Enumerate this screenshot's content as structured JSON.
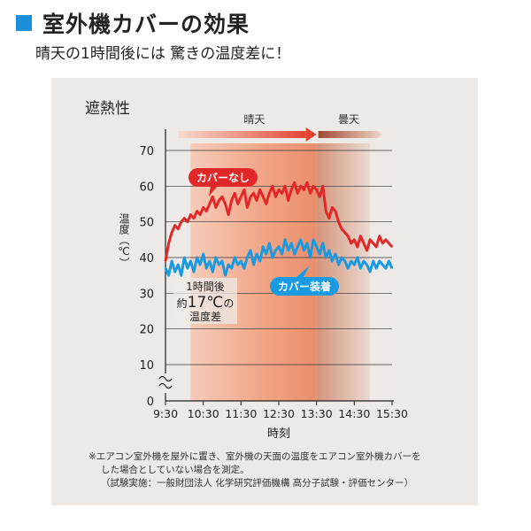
{
  "header": {
    "title": "室外機カバーの効果",
    "subtitle": "晴天の1時間後には 驚きの温度差に！"
  },
  "panel": {
    "heading": "遮熱性",
    "notes": [
      "※エアコン室外機を屋外に置き、室外機の天面の温度をエアコン室外機カバーを",
      "した場合としていない場合を測定。",
      "（試験実施：一般財団法人 化学研究評価機構 高分子試験・評価センター）"
    ]
  },
  "chart_data": {
    "type": "line",
    "title": "遮熱性",
    "xlabel": "時刻",
    "ylabel": "温度（℃）",
    "x_ticks": [
      "9:30",
      "10:30",
      "11:30",
      "12:30",
      "13:30",
      "14:30",
      "15:30"
    ],
    "y_ticks": [
      0,
      10,
      20,
      30,
      40,
      50,
      60,
      70
    ],
    "ylim": [
      0,
      70
    ],
    "y_axis_break": "0-10",
    "grid": "horizontal",
    "periods": [
      {
        "label": "晴天",
        "from": "9:30",
        "to": "13:30"
      },
      {
        "label": "曇天",
        "from": "13:30",
        "to": "15:30"
      }
    ],
    "annotation": {
      "line1": "1時間後",
      "prefix": "約",
      "value": "17℃",
      "suffix": "の",
      "line3": "温度差"
    },
    "colors": {
      "no_cover": "#e02828",
      "with_cover": "#1a9ae0",
      "accent": "#1a8ed8"
    },
    "series": [
      {
        "name": "カバーなし",
        "x": [
          "9:30",
          "9:35",
          "9:40",
          "9:45",
          "9:50",
          "9:55",
          "10:00",
          "10:05",
          "10:10",
          "10:15",
          "10:20",
          "10:25",
          "10:30",
          "10:35",
          "10:40",
          "10:45",
          "10:50",
          "10:55",
          "11:00",
          "11:05",
          "11:10",
          "11:15",
          "11:20",
          "11:25",
          "11:30",
          "11:35",
          "11:40",
          "11:45",
          "11:50",
          "11:55",
          "12:00",
          "12:05",
          "12:10",
          "12:15",
          "12:20",
          "12:25",
          "12:30",
          "12:35",
          "12:40",
          "12:45",
          "12:50",
          "12:55",
          "13:00",
          "13:05",
          "13:10",
          "13:15",
          "13:20",
          "13:25",
          "13:30",
          "13:35",
          "13:40",
          "13:45",
          "13:50",
          "13:55",
          "14:00",
          "14:05",
          "14:10",
          "14:15",
          "14:20",
          "14:25",
          "14:30",
          "14:35",
          "14:40",
          "14:45",
          "14:50",
          "14:55",
          "15:00",
          "15:05",
          "15:10",
          "15:15",
          "15:20",
          "15:25",
          "15:30"
        ],
        "values": [
          39,
          44,
          47,
          49,
          48,
          50,
          51,
          50,
          52,
          51,
          53,
          52,
          54,
          53,
          55,
          57,
          54,
          56,
          57,
          55,
          52,
          56,
          58,
          55,
          57,
          59,
          54,
          57,
          58,
          56,
          59,
          57,
          55,
          58,
          60,
          57,
          59,
          58,
          60,
          56,
          59,
          61,
          58,
          60,
          59,
          61,
          58,
          60,
          59,
          57,
          60,
          53,
          51,
          54,
          53,
          50,
          48,
          47,
          46,
          44,
          45,
          43,
          46,
          44,
          42,
          45,
          44,
          43,
          46,
          44,
          45,
          44,
          43
        ]
      },
      {
        "name": "カバー装着",
        "x": [
          "9:30",
          "9:35",
          "9:40",
          "9:45",
          "9:50",
          "9:55",
          "10:00",
          "10:05",
          "10:10",
          "10:15",
          "10:20",
          "10:25",
          "10:30",
          "10:35",
          "10:40",
          "10:45",
          "10:50",
          "10:55",
          "11:00",
          "11:05",
          "11:10",
          "11:15",
          "11:20",
          "11:25",
          "11:30",
          "11:35",
          "11:40",
          "11:45",
          "11:50",
          "11:55",
          "12:00",
          "12:05",
          "12:10",
          "12:15",
          "12:20",
          "12:25",
          "12:30",
          "12:35",
          "12:40",
          "12:45",
          "12:50",
          "12:55",
          "13:00",
          "13:05",
          "13:10",
          "13:15",
          "13:20",
          "13:25",
          "13:30",
          "13:35",
          "13:40",
          "13:45",
          "13:50",
          "13:55",
          "14:00",
          "14:05",
          "14:10",
          "14:15",
          "14:20",
          "14:25",
          "14:30",
          "14:35",
          "14:40",
          "14:45",
          "14:50",
          "14:55",
          "15:00",
          "15:05",
          "15:10",
          "15:15",
          "15:20",
          "15:25",
          "15:30"
        ],
        "values": [
          37,
          35,
          39,
          36,
          38,
          35,
          40,
          37,
          39,
          36,
          40,
          38,
          41,
          37,
          39,
          36,
          40,
          38,
          39,
          35,
          38,
          37,
          40,
          38,
          39,
          37,
          40,
          42,
          38,
          41,
          39,
          43,
          41,
          44,
          40,
          42,
          43,
          41,
          45,
          42,
          44,
          41,
          43,
          45,
          42,
          44,
          40,
          45,
          43,
          41,
          44,
          40,
          42,
          39,
          41,
          38,
          40,
          39,
          37,
          39,
          38,
          40,
          37,
          39,
          38,
          36,
          39,
          37,
          39,
          38,
          37,
          39,
          37
        ]
      }
    ]
  }
}
